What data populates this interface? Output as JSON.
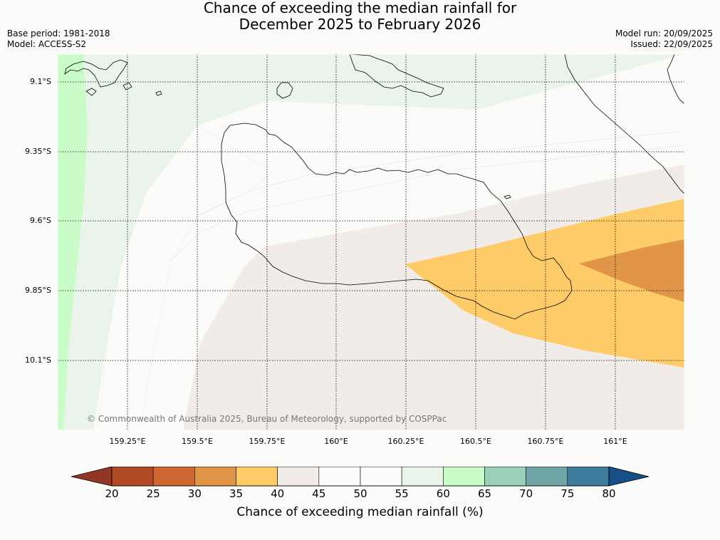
{
  "header": {
    "title_line1": "Chance of exceeding the median rainfall for",
    "title_line2": "December 2025 to February 2026",
    "base_period": "Base period: 1981-2018",
    "model": "Model: ACCESS-S2",
    "model_run": "Model run: 20/09/2025",
    "issued": "Issued: 22/09/2025"
  },
  "map": {
    "lat_labels": [
      "9.1°S",
      "9.35°S",
      "9.6°S",
      "9.85°S",
      "10.1°S"
    ],
    "lon_labels": [
      "159.25°E",
      "159.5°E",
      "159.75°E",
      "160°E",
      "160.25°E",
      "160.5°E",
      "160.75°E",
      "161°E"
    ],
    "copyright": "© Commonwealth of Australia 2025, Bureau of Meteorology, supported by COSPPac"
  },
  "colorbar": {
    "title": "Chance of exceeding median rainfall (%)",
    "ticks": [
      "20",
      "25",
      "30",
      "35",
      "40",
      "45",
      "50",
      "55",
      "60",
      "65",
      "70",
      "75",
      "80"
    ],
    "colors": [
      "#b14a25",
      "#cf6633",
      "#e19548",
      "#fecb69",
      "#f1ece7",
      "#fbfcfa",
      "#fbfcfa",
      "#eaf4ea",
      "#c9fcc9",
      "#9bd1bb",
      "#6fa5a6",
      "#3f7b9c"
    ],
    "under_color": "#943625",
    "over_color": "#164e86"
  }
}
